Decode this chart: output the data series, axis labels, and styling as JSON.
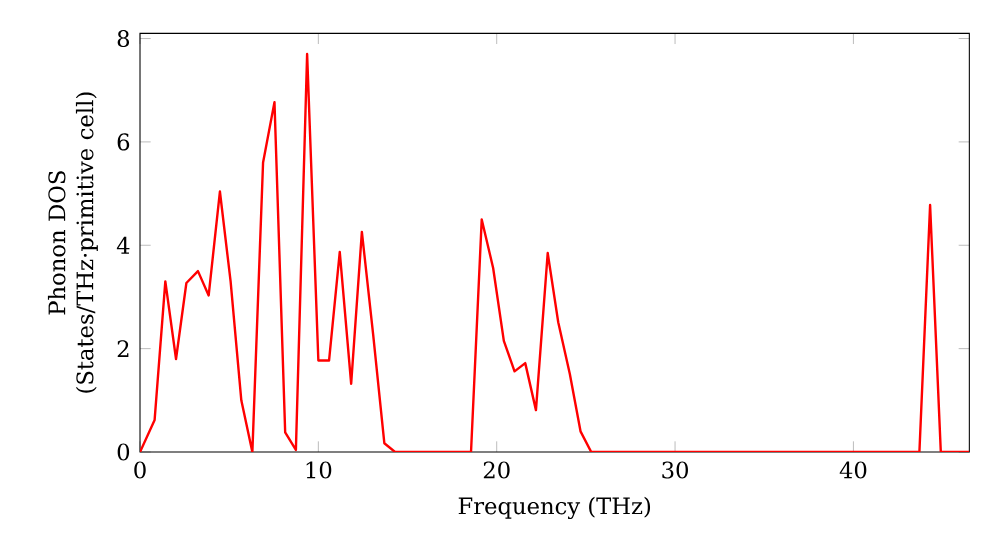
{
  "chart_data": {
    "type": "line",
    "xlabel": "Frequency (THz)",
    "ylabel": "Phonon DOS (States/THz·primitive cell)",
    "xlim": [
      0,
      46.5
    ],
    "ylim": [
      0,
      8.1
    ],
    "xticks": [
      0,
      10,
      20,
      30,
      40
    ],
    "yticks": [
      0,
      2,
      4,
      6,
      8
    ],
    "grid": false,
    "marker": "none",
    "line_style": "solid",
    "series": [
      {
        "color": "#ff0000",
        "x": [
          0,
          0.82,
          1.42,
          2.02,
          2.6,
          3.25,
          3.85,
          4.48,
          5.08,
          5.68,
          6.3,
          6.9,
          7.54,
          8.14,
          8.74,
          9.37,
          10.0,
          10.6,
          11.2,
          11.84,
          12.44,
          13.07,
          13.7,
          14.3,
          18.56,
          19.16,
          19.8,
          20.4,
          21.0,
          21.6,
          22.2,
          22.86,
          23.45,
          24.1,
          24.7,
          25.3,
          43.7,
          44.3,
          44.9,
          46.5
        ],
        "values": [
          0,
          0.62,
          3.3,
          1.8,
          3.27,
          3.5,
          3.03,
          5.04,
          3.3,
          1.0,
          0,
          5.6,
          6.77,
          0.38,
          0.04,
          7.7,
          1.77,
          1.77,
          3.87,
          1.32,
          4.26,
          2.28,
          0.17,
          0,
          0,
          4.5,
          3.56,
          2.15,
          1.56,
          1.72,
          0.81,
          3.85,
          2.51,
          1.51,
          0.4,
          0,
          0,
          4.78,
          0,
          0
        ]
      }
    ]
  }
}
